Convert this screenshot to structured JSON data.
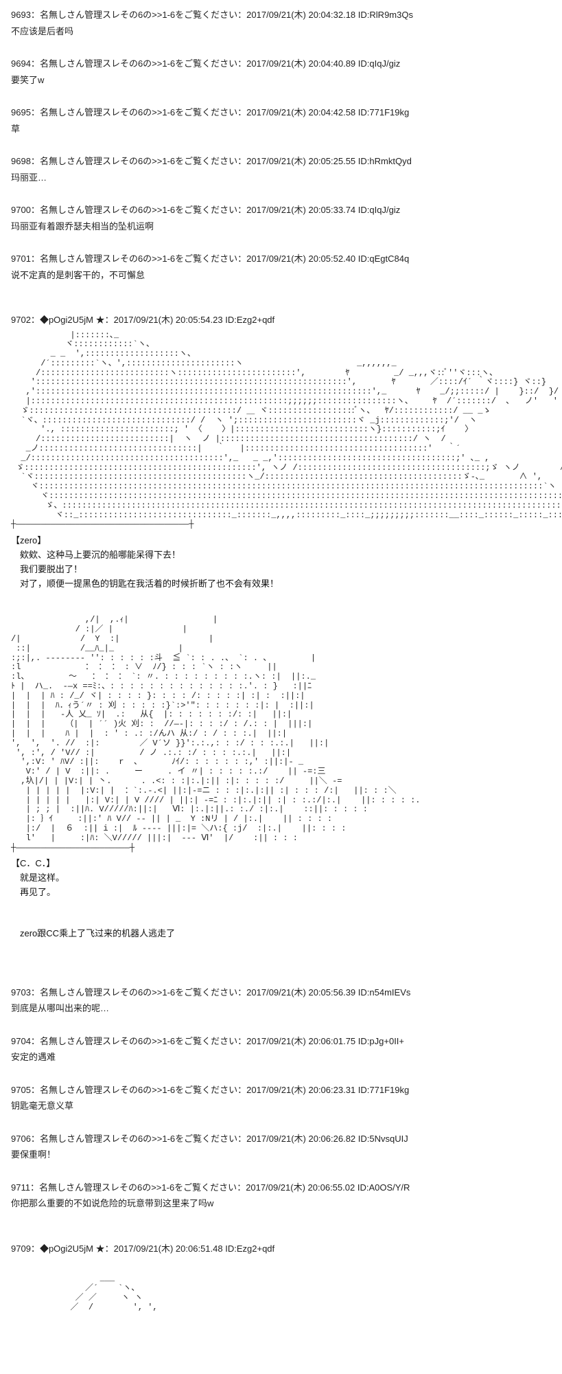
{
  "posts": [
    {
      "no": "9693",
      "name": "名無しさん管理スレその6の>>1-6をご覧ください",
      "date": "2017/09/21(木) 20:04:32.18",
      "id": "RlR9m3Qs",
      "body": "不应该是后者吗"
    },
    {
      "no": "9694",
      "name": "名無しさん管理スレその6の>>1-6をご覧ください",
      "date": "2017/09/21(木) 20:04:40.89",
      "id": "qIqJ/giz",
      "body": "要笑了w"
    },
    {
      "no": "9695",
      "name": "名無しさん管理スレその6の>>1-6をご覧ください",
      "date": "2017/09/21(木) 20:04:42.58",
      "id": "771F19kg",
      "body": "草"
    },
    {
      "no": "9698",
      "name": "名無しさん管理スレその6の>>1-6をご覧ください",
      "date": "2017/09/21(木) 20:05:25.55",
      "id": "hRmktQyd",
      "body": "玛丽亚…"
    },
    {
      "no": "9700",
      "name": "名無しさん管理スレその6の>>1-6をご覧ください",
      "date": "2017/09/21(木) 20:05:33.74",
      "id": "qIqJ/giz",
      "body": "玛丽亚有着跟乔瑟夫相当的坠机运啊"
    },
    {
      "no": "9701",
      "name": "名無しさん管理スレその6の>>1-6をご覧ください",
      "date": "2017/09/21(木) 20:05:52.40",
      "id": "qEgtC84q",
      "body": "说不定真的是刺客干的，不可懈怠"
    }
  ],
  "post7": {
    "no": "9702",
    "name": "◆pOgi2U5jM ★",
    "date": "2017/09/21(木) 20:05:54.23",
    "id": "Ezg2+qdf",
    "speaker1": "【zero】",
    "line1a": "　欸欸、这种马上要沉的船哪能呆得下去！",
    "line1b": "　我们要脱出了！",
    "line1c": "　对了，顺便一提黑色的钥匙在我活着的时候折断了也不会有效果！",
    "speaker2": "【C．C．】",
    "line2a": "　就是这样。",
    "line2b": "　再见了。",
    "narration": "　zero跟CC乘上了飞过来的机器人逃走了"
  },
  "posts2": [
    {
      "no": "9703",
      "name": "名無しさん管理スレその6の>>1-6をご覧ください",
      "date": "2017/09/21(木) 20:05:56.39",
      "id": "n54mIEVs",
      "body": "到底是从哪叫出来的呢…"
    },
    {
      "no": "9704",
      "name": "名無しさん管理スレその6の>>1-6をご覧ください",
      "date": "2017/09/21(木) 20:06:01.75",
      "id": "pJg+0II+",
      "body": "安定的遇难"
    },
    {
      "no": "9705",
      "name": "名無しさん管理スレその6の>>1-6をご覧ください",
      "date": "2017/09/21(木) 20:06:23.31",
      "id": "771F19kg",
      "body": "钥匙毫无意义草"
    },
    {
      "no": "9706",
      "name": "名無しさん管理スレその6の>>1-6をご覧ください",
      "date": "2017/09/21(木) 20:06:26.82",
      "id": "5NvsqUIJ",
      "body": "要保重啊！"
    },
    {
      "no": "9711",
      "name": "名無しさん管理スレその6の>>1-6をご覧ください",
      "date": "2017/09/21(木) 20:06:55.02",
      "id": "A0OS/Y/R",
      "body": "你把那么重要的不如说危险的玩意带到这里来了吗w"
    }
  ],
  "post8": {
    "no": "9709",
    "name": "◆pOgi2U5jM ★",
    "date": "2017/09/21(木) 20:06:51.48",
    "id": "Ezg2+qdf"
  },
  "aa1": "            |:::::::､_\n           ヾ::::::::::::`ヽ、\n        _ _  ',:::::::::::::::::::ヽ、\n      /´:::::::::`ヽ、',::::::::::::::::::::::ヽ                       _,,,,,,_\n     /::::::::::::::::::::::::::ヽ::::::::::::::::::::::::',        ﾔ         _/ _,,,ヾ::ﾞ''ヾ:::ヽ、\n    ':::::::::::::::::::::::::::::::::::::::::::::::::::::::::::::::',       ﾔ       ／::::/ｲ´ ｀ヾ::::} ヾ::}\n   ,'::::::::::::::::::::::::::::::::::::::::::::::::::::::::::::::::::::',_      ﾔ    _/;;:::::/ |    }::/  }/\n   |::::::::::::::::::::::::::::::::::::::::::::::::::::;;;;;;::::::::::::::::ヽ、    ﾔ  /´:::::::/  ､   ノ'   '\n  ゞ::::::::::::::::::::::::::::::::::::::::::/ ＿ ヾ::::::::::::::::::ﾞヽ、  ﾔ/::::::::::::/ __ _ゝ\n  `ヾ、::::::::::::::::::::::::::::::/ /  ヽ ';::::::::::::::::::::::::ヾ _j:::::::::::::;'/  ヽ\n      '., :::::::::::::::::::::::; ' 〈    〉|:::::::::::::::::::::::::::ヽ}:::::::::::;ｲ    〉\n     /::::::::::::::::::::::::::|  ヽ  ノ |:::::::::::::::::::::::::::::::::::::::/ ヽ  /\n   _ノ::::::::::::::::::::::::::::::::|   ｀   |:::::::::::::::::::::::::::::::::::::'   ｀´\n  _/:::::::::::::::::::::::::::::::::::::::',_   _ _,'::::::::::::::::::::::::::::::::::::;' ､_ ,\n ゞ:::::::::::::::::::::::::::::::::::::::::::::::', ヽノ /::::::::::::::::::::::::::::::::::::::;ゞ ヽノ        ∧\n  `ヾ:::::::::::::::::::::::::::::::::::::::::::ヽ_/::::::::::::::::::::::::::::::::::::::::ゞ-､_       ∧ ',\n    ヾ::::::::::::::::::::::::::::::::::::::::::::::::::::::::::::::::::::::::::::::::::::::::::::::::::::::`ヽ    / ∧ ',\n      ヾ:::::::::::::::::::::::::::::::::::::::::::::::::::::::::::::::::::::::::::::::::::::::::::::::::::::::::`ヾ-''  ∧ ',   /ヽ\n       ゞ、::::::::::::::::::::::::::::::::::::::::::::::::::::::::::::::::::::::::::::::::::::::::::::::::::::::::::ヾ、_  ∧_//::::::ヽ\n         ヾ::_:::::::::::::::::::::::::::::::_:::::::_,,,,:::::::::_::::_;;;;;;;;;:::::::__::::_::::::_:::::_::::::ヾ-':::::::::::::::::ヽ\n┼―――――――――――――――――――――――――――――――――――┼",
  "aa2": "               ,/|  ,.ｨ|                 |\n             / :|／ |              |\n/|            /  Y  :|                  |\n ::|          /__ﾊ_|_             |\n:;:|,. -------- '': : : : : :斗  ≦ `: : . .、 `: . 、        |\n:l             ： ： ： : ∨  ﾉ/} : : : `ヽ : :ヽ     ||\n:l、        ～   ： ： ： `: 〃. : : : : : : : : :.ヽ: :|  ||:._\nﾄ |  ハ_.  -―x ==ﾐ:、: : : : : : : : : : : : : :.'. : }   :||ﾆ\n|  |  | ﾊ : /_/ ヾ| : : : : }: : : : /: : : : :| :| :  :||:|\n|  |  |  ﾊ．ｨう´〃 : 刈 : : : : :}`:>'\": : : : : : :|: |  :||:|\n|  |  |   -人 乂_ ｿ|  .:   从{  |: : : : : : :/: :|   ||:|\n|  |  |    （|  | ´´ )火 刈: :  //―‐|: : : :/ : /.: : |  |||:|\n|  |  |    ﾊ |  |  : ′ : .: :/んハ 从:/ : / : : :.|  ||:|\n',  ',  '. //  :|:        ／ V´ソ }}':.:.,: : :/ : : :.:.|   ||:|\n ', :', / 'V// :|         / ノ .:.: :/ : : : :.:.|   ||:|\n  ',:V: ' ﾊV/ :||:    r  、      ﾉｲ/: : : : : : :,′ :||:|- _\n   V:' / | V  :||: .     ー     . イ 〃| : : : : :.:/    || -=:三\n  ,圦|/| | |V:| | 丶.      . .<: : :|:.|:|| :|: : : : :/     ||＼ -=\n   | | | | |  |:V:| |  ：`:.-.<| ||:|-=ニ : : :|:.|:|| :| : : : /:|   ||: : :＼\n   | | | | |   |:| V:| | V //// | ||:| -=ﾆ : :|:.|:|| :| : :.:/|:.|    ||: : : : :.\n   | ; ; |  :||ﾊ. V/////ﾊ:||:|   Ⅵ: |:.|:||.: :./ :|:.|    ::||: : : : :\n   |: ｝ｲ     :||:' ﾊ V// -- || | _  Y :Nリ | / |:.|    || : : : :\n   |:/  |  ６  :|| i :|  ﾙ ---- |||:|= ＼ハ:{ :j/  :|:.|    ||: : : :\n   l'   |     :|ﾊ: ＼V///// |||:|  --- Ⅵ′  |/    :|| : : :\n┼―――――――――――――――――――――――┼",
  "aa3": "                  ___\n               ／´    `ヽ、\n             ／ ／     ヽ ヽ\n            ／  /        ', ',"
}
